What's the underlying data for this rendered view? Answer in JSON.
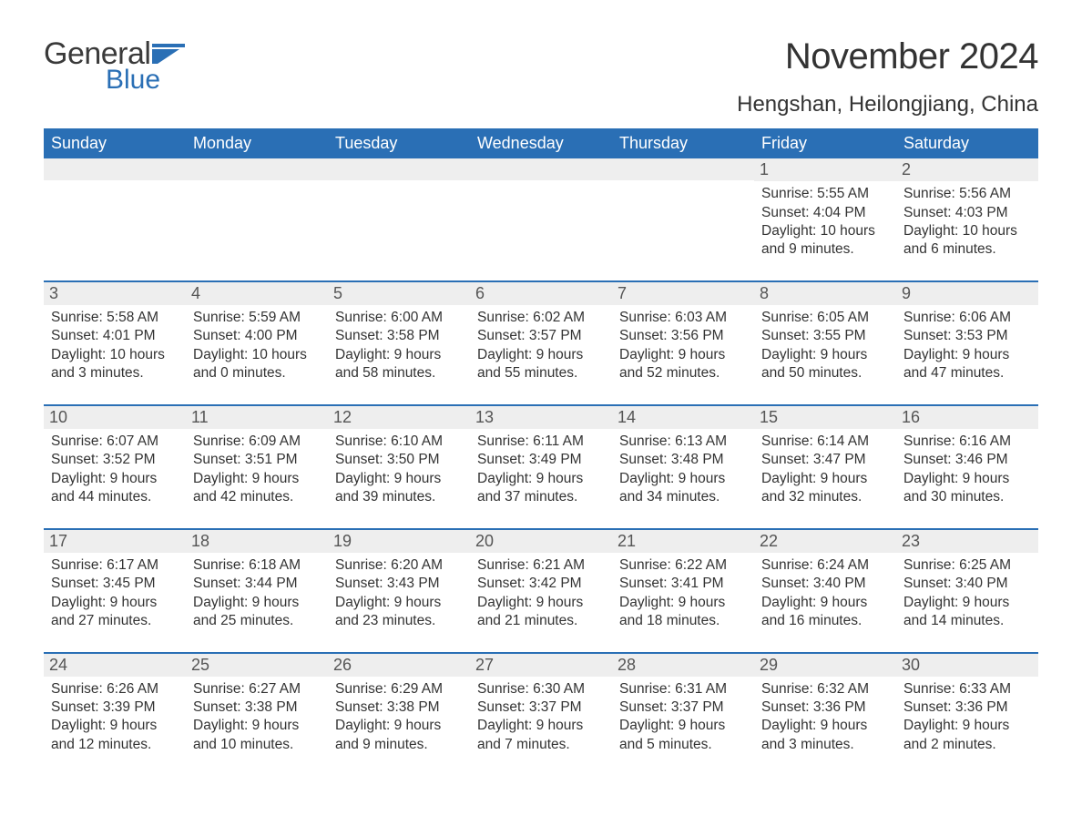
{
  "logo": {
    "text1": "General",
    "text2": "Blue",
    "icon_color": "#2a6fb5"
  },
  "title": "November 2024",
  "location": "Hengshan, Heilongjiang, China",
  "colors": {
    "header_bg": "#2a6fb5",
    "header_text": "#ffffff",
    "daynum_bg": "#eeeeee",
    "text": "#333333",
    "rule": "#2a6fb5"
  },
  "weekdays": [
    "Sunday",
    "Monday",
    "Tuesday",
    "Wednesday",
    "Thursday",
    "Friday",
    "Saturday"
  ],
  "weeks": [
    [
      null,
      null,
      null,
      null,
      null,
      {
        "n": "1",
        "sr": "5:55 AM",
        "ss": "4:04 PM",
        "d1": "Daylight: 10 hours",
        "d2": "and 9 minutes."
      },
      {
        "n": "2",
        "sr": "5:56 AM",
        "ss": "4:03 PM",
        "d1": "Daylight: 10 hours",
        "d2": "and 6 minutes."
      }
    ],
    [
      {
        "n": "3",
        "sr": "5:58 AM",
        "ss": "4:01 PM",
        "d1": "Daylight: 10 hours",
        "d2": "and 3 minutes."
      },
      {
        "n": "4",
        "sr": "5:59 AM",
        "ss": "4:00 PM",
        "d1": "Daylight: 10 hours",
        "d2": "and 0 minutes."
      },
      {
        "n": "5",
        "sr": "6:00 AM",
        "ss": "3:58 PM",
        "d1": "Daylight: 9 hours",
        "d2": "and 58 minutes."
      },
      {
        "n": "6",
        "sr": "6:02 AM",
        "ss": "3:57 PM",
        "d1": "Daylight: 9 hours",
        "d2": "and 55 minutes."
      },
      {
        "n": "7",
        "sr": "6:03 AM",
        "ss": "3:56 PM",
        "d1": "Daylight: 9 hours",
        "d2": "and 52 minutes."
      },
      {
        "n": "8",
        "sr": "6:05 AM",
        "ss": "3:55 PM",
        "d1": "Daylight: 9 hours",
        "d2": "and 50 minutes."
      },
      {
        "n": "9",
        "sr": "6:06 AM",
        "ss": "3:53 PM",
        "d1": "Daylight: 9 hours",
        "d2": "and 47 minutes."
      }
    ],
    [
      {
        "n": "10",
        "sr": "6:07 AM",
        "ss": "3:52 PM",
        "d1": "Daylight: 9 hours",
        "d2": "and 44 minutes."
      },
      {
        "n": "11",
        "sr": "6:09 AM",
        "ss": "3:51 PM",
        "d1": "Daylight: 9 hours",
        "d2": "and 42 minutes."
      },
      {
        "n": "12",
        "sr": "6:10 AM",
        "ss": "3:50 PM",
        "d1": "Daylight: 9 hours",
        "d2": "and 39 minutes."
      },
      {
        "n": "13",
        "sr": "6:11 AM",
        "ss": "3:49 PM",
        "d1": "Daylight: 9 hours",
        "d2": "and 37 minutes."
      },
      {
        "n": "14",
        "sr": "6:13 AM",
        "ss": "3:48 PM",
        "d1": "Daylight: 9 hours",
        "d2": "and 34 minutes."
      },
      {
        "n": "15",
        "sr": "6:14 AM",
        "ss": "3:47 PM",
        "d1": "Daylight: 9 hours",
        "d2": "and 32 minutes."
      },
      {
        "n": "16",
        "sr": "6:16 AM",
        "ss": "3:46 PM",
        "d1": "Daylight: 9 hours",
        "d2": "and 30 minutes."
      }
    ],
    [
      {
        "n": "17",
        "sr": "6:17 AM",
        "ss": "3:45 PM",
        "d1": "Daylight: 9 hours",
        "d2": "and 27 minutes."
      },
      {
        "n": "18",
        "sr": "6:18 AM",
        "ss": "3:44 PM",
        "d1": "Daylight: 9 hours",
        "d2": "and 25 minutes."
      },
      {
        "n": "19",
        "sr": "6:20 AM",
        "ss": "3:43 PM",
        "d1": "Daylight: 9 hours",
        "d2": "and 23 minutes."
      },
      {
        "n": "20",
        "sr": "6:21 AM",
        "ss": "3:42 PM",
        "d1": "Daylight: 9 hours",
        "d2": "and 21 minutes."
      },
      {
        "n": "21",
        "sr": "6:22 AM",
        "ss": "3:41 PM",
        "d1": "Daylight: 9 hours",
        "d2": "and 18 minutes."
      },
      {
        "n": "22",
        "sr": "6:24 AM",
        "ss": "3:40 PM",
        "d1": "Daylight: 9 hours",
        "d2": "and 16 minutes."
      },
      {
        "n": "23",
        "sr": "6:25 AM",
        "ss": "3:40 PM",
        "d1": "Daylight: 9 hours",
        "d2": "and 14 minutes."
      }
    ],
    [
      {
        "n": "24",
        "sr": "6:26 AM",
        "ss": "3:39 PM",
        "d1": "Daylight: 9 hours",
        "d2": "and 12 minutes."
      },
      {
        "n": "25",
        "sr": "6:27 AM",
        "ss": "3:38 PM",
        "d1": "Daylight: 9 hours",
        "d2": "and 10 minutes."
      },
      {
        "n": "26",
        "sr": "6:29 AM",
        "ss": "3:38 PM",
        "d1": "Daylight: 9 hours",
        "d2": "and 9 minutes."
      },
      {
        "n": "27",
        "sr": "6:30 AM",
        "ss": "3:37 PM",
        "d1": "Daylight: 9 hours",
        "d2": "and 7 minutes."
      },
      {
        "n": "28",
        "sr": "6:31 AM",
        "ss": "3:37 PM",
        "d1": "Daylight: 9 hours",
        "d2": "and 5 minutes."
      },
      {
        "n": "29",
        "sr": "6:32 AM",
        "ss": "3:36 PM",
        "d1": "Daylight: 9 hours",
        "d2": "and 3 minutes."
      },
      {
        "n": "30",
        "sr": "6:33 AM",
        "ss": "3:36 PM",
        "d1": "Daylight: 9 hours",
        "d2": "and 2 minutes."
      }
    ]
  ],
  "labels": {
    "sunrise": "Sunrise: ",
    "sunset": "Sunset: "
  }
}
